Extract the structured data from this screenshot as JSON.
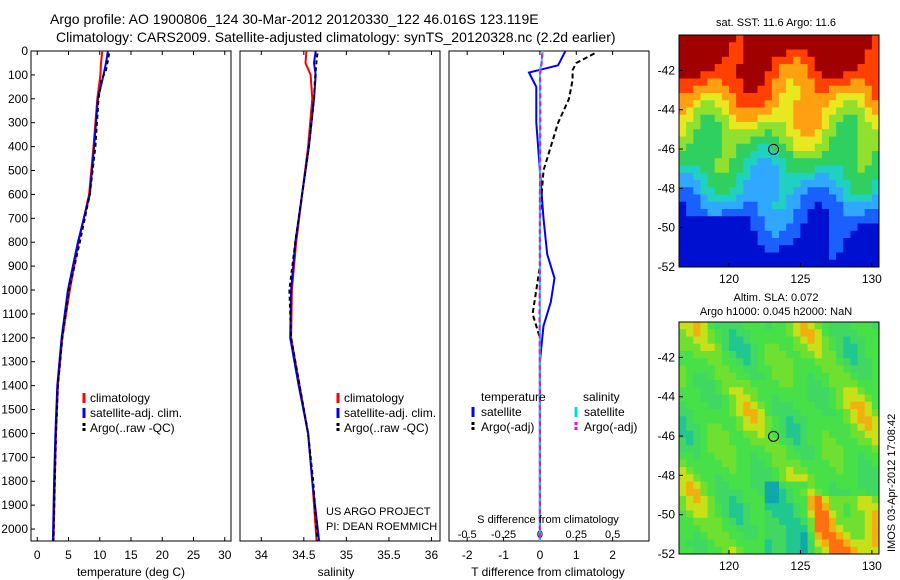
{
  "header": {
    "line1": "Argo profile: AO 1900806_124 30-Mar-2012 20120330_122 46.016S 123.119E",
    "line2": "Climatology: CARS2009. Satellite-adjusted climatology: synTS_20120328.nc (2.2d earlier)"
  },
  "credit": {
    "project": "US ARGO PROJECT",
    "pi": "PI: DEAN ROEMMICH"
  },
  "sidebar_stamp": "IMOS 03-Apr-2012 17:08:42",
  "colors": {
    "climatology": "#ff0000",
    "satellite": "#0000ff",
    "argo": "#000000",
    "salinity_satellite": "#00e0e0",
    "salinity_argo": "#ff00ff"
  },
  "chart_data": [
    {
      "id": "temperature",
      "type": "line",
      "xlabel": "temperature (deg C)",
      "ylabel": "",
      "xlim": [
        -1,
        31
      ],
      "ylim": [
        2050,
        0
      ],
      "xticks": [
        0,
        5,
        10,
        15,
        20,
        25,
        30
      ],
      "yticks": [
        0,
        100,
        200,
        300,
        400,
        500,
        600,
        700,
        800,
        900,
        1000,
        1100,
        1200,
        1300,
        1400,
        1500,
        1600,
        1700,
        1800,
        1900,
        2000
      ],
      "legend": [
        "climatology",
        "satellite-adj. clim.",
        "Argo(..raw -QC)"
      ],
      "series": [
        {
          "name": "climatology",
          "color": "#ff0000",
          "dash": "",
          "depth": [
            0,
            50,
            100,
            200,
            400,
            600,
            800,
            1000,
            1200,
            1400,
            1600,
            1800,
            2050
          ],
          "values": [
            10.4,
            10.2,
            10.1,
            9.6,
            9.0,
            8.3,
            6.6,
            5.2,
            4.0,
            3.3,
            3.0,
            2.8,
            2.6
          ]
        },
        {
          "name": "satellite-adj. clim.",
          "color": "#0000ff",
          "dash": "",
          "depth": [
            0,
            50,
            100,
            200,
            400,
            600,
            800,
            1000,
            1200,
            1400,
            1600,
            1800,
            2050
          ],
          "values": [
            11.3,
            11.0,
            10.6,
            9.7,
            9.1,
            8.4,
            6.5,
            4.9,
            3.9,
            3.2,
            2.9,
            2.7,
            2.5
          ]
        },
        {
          "name": "Argo(..raw -QC)",
          "color": "#000000",
          "dash": "4,3",
          "depth": [
            10,
            40,
            80,
            120,
            200,
            400,
            600,
            800,
            1000,
            1200,
            1400,
            1600,
            1800,
            2050
          ],
          "values": [
            11.5,
            11.3,
            11.0,
            10.3,
            9.8,
            9.3,
            8.4,
            6.8,
            5.1,
            4.0,
            3.3,
            3.0,
            2.8,
            2.6
          ]
        }
      ]
    },
    {
      "id": "salinity",
      "type": "line",
      "xlabel": "salinity",
      "ylabel": "",
      "xlim": [
        33.75,
        36.1
      ],
      "ylim": [
        2050,
        0
      ],
      "xticks": [
        34,
        34.5,
        35,
        35.5,
        36
      ],
      "legend": [
        "climatology",
        "satellite-adj. clim.",
        "Argo(..raw -QC)"
      ],
      "series": [
        {
          "name": "climatology",
          "color": "#ff0000",
          "dash": "",
          "depth": [
            0,
            50,
            100,
            200,
            400,
            600,
            800,
            1000,
            1200,
            1400,
            1600,
            1800,
            2050
          ],
          "values": [
            34.53,
            34.52,
            34.58,
            34.6,
            34.55,
            34.48,
            34.41,
            34.36,
            34.35,
            34.45,
            34.55,
            34.6,
            34.65
          ]
        },
        {
          "name": "satellite-adj. clim.",
          "color": "#0000ff",
          "dash": "",
          "depth": [
            0,
            50,
            100,
            200,
            400,
            600,
            800,
            1000,
            1200,
            1400,
            1600,
            1800,
            2050
          ],
          "values": [
            34.64,
            34.62,
            34.64,
            34.62,
            34.56,
            34.48,
            34.4,
            34.35,
            34.34,
            34.44,
            34.55,
            34.6,
            34.68
          ]
        },
        {
          "name": "Argo(..raw -QC)",
          "color": "#000000",
          "dash": "4,3",
          "depth": [
            10,
            40,
            80,
            120,
            200,
            400,
            600,
            800,
            1000,
            1200,
            1400,
            1600,
            1800,
            2050
          ],
          "values": [
            34.66,
            34.65,
            34.64,
            34.63,
            34.62,
            34.56,
            34.48,
            34.4,
            34.33,
            34.35,
            34.45,
            34.55,
            34.61,
            34.66
          ]
        }
      ]
    },
    {
      "id": "differences",
      "type": "line",
      "xlabel": "T difference from climatology",
      "top_xlabel": "S difference from climatology",
      "xlim": [
        -2.5,
        3.0
      ],
      "ylim": [
        2050,
        0
      ],
      "xticks": [
        -2,
        -1,
        0,
        1,
        2
      ],
      "top_ticks": [
        "-0.5",
        "-0.25",
        "0",
        "0.25",
        "0.5"
      ],
      "legend_headers": [
        "temperature",
        "salinity"
      ],
      "legend": [
        "satellite",
        "Argo(-adj)",
        "satellite",
        "Argo(-adj)"
      ],
      "series": [
        {
          "name": "satellite",
          "group": "temperature",
          "color": "#0000ff",
          "dash": "",
          "depth": [
            0,
            60,
            90,
            150,
            300,
            500,
            700,
            850,
            900,
            950,
            1050,
            1150,
            1300,
            1500,
            2050
          ],
          "values": [
            0.7,
            0.5,
            -0.3,
            -0.1,
            -0.1,
            0.0,
            0.1,
            0.2,
            0.3,
            0.4,
            0.3,
            0.1,
            0.0,
            0.0,
            0.0
          ]
        },
        {
          "name": "Argo(-adj)",
          "group": "temperature",
          "color": "#000000",
          "dash": "5,3",
          "depth": [
            10,
            50,
            80,
            120,
            200,
            300,
            500,
            700,
            900,
            1000,
            1100,
            1200,
            1400,
            1700,
            2050
          ],
          "values": [
            1.5,
            1.0,
            0.9,
            0.9,
            0.8,
            0.5,
            0.1,
            0.0,
            0.0,
            -0.1,
            -0.2,
            0.0,
            0.0,
            0.0,
            0.0
          ]
        },
        {
          "name": "satellite",
          "group": "salinity",
          "color": "#00e0e0",
          "dash": "",
          "depth": [
            0,
            50,
            80,
            120,
            200,
            400,
            700,
            1000,
            1300,
            1600,
            2050
          ],
          "values": [
            0.08,
            0.04,
            0.0,
            0.0,
            0.0,
            0.0,
            0.0,
            0.0,
            0.0,
            0.0,
            0.0
          ]
        },
        {
          "name": "Argo(-adj)",
          "group": "salinity",
          "color": "#ff00ff",
          "dash": "5,3",
          "depth": [
            10,
            50,
            100,
            150,
            300,
            600,
            900,
            1100,
            1400,
            1700,
            2050
          ],
          "values": [
            0.06,
            0.05,
            0.0,
            0.01,
            0.01,
            0.0,
            0.0,
            -0.01,
            0.0,
            0.0,
            0.0
          ]
        }
      ]
    },
    {
      "id": "sst_map",
      "type": "heatmap",
      "title": "sat. SST: 11.6  Argo: 11.6",
      "xlim": [
        116.5,
        130.5
      ],
      "ylim": [
        -52,
        -40.2
      ],
      "xticks": [
        120,
        125,
        130
      ],
      "yticks": [
        -42,
        -44,
        -46,
        -48,
        -50,
        -52
      ],
      "marker": {
        "lon": 123.119,
        "lat": -46.016
      }
    },
    {
      "id": "sla_map",
      "type": "heatmap",
      "title": "Altim. SLA: 0.072",
      "subtitle": "Argo h1000: 0.045 h2000: NaN",
      "xlim": [
        116.5,
        130.5
      ],
      "ylim": [
        -52,
        -40.2
      ],
      "xticks": [
        120,
        125,
        130
      ],
      "yticks": [
        -42,
        -44,
        -46,
        -48,
        -50,
        -52
      ],
      "marker": {
        "lon": 123.119,
        "lat": -46.016
      }
    }
  ]
}
